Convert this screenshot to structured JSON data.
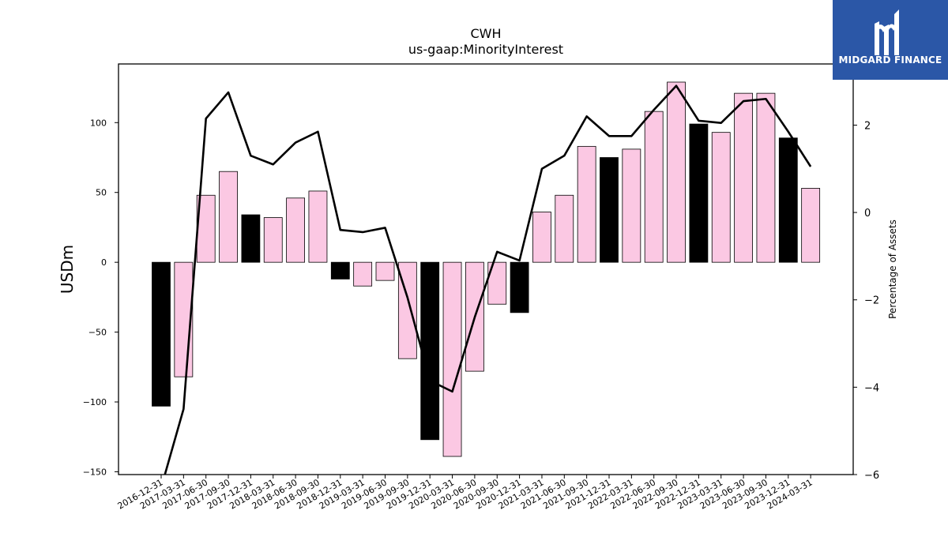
{
  "logo": {
    "text": "MIDGARD FINANCE",
    "icon": "midgard-logo-icon",
    "color": "#2b57a7"
  },
  "chart_data": {
    "type": "bar",
    "title": "CWH",
    "subtitle": "us-gaap:MinorityInterest",
    "ylabel": "USDm",
    "y2label": "Percentage of Assets",
    "ylim": [
      -152,
      142
    ],
    "y2lim": [
      -6,
      3.4
    ],
    "yticks": [
      -150,
      -100,
      -50,
      0,
      50,
      100
    ],
    "y2ticks": [
      -6,
      -4,
      -2,
      0,
      2
    ],
    "grid": false,
    "colors": {
      "q4_bar": "#000000",
      "other_bar": "#fbc8e3",
      "line": "#000000"
    },
    "categories": [
      "2016-12-31",
      "2017-03-31",
      "2017-06-30",
      "2017-09-30",
      "2017-12-31",
      "2018-03-31",
      "2018-06-30",
      "2018-09-30",
      "2018-12-31",
      "2019-03-31",
      "2019-06-30",
      "2019-09-30",
      "2019-12-31",
      "2020-03-31",
      "2020-06-30",
      "2020-09-30",
      "2020-12-31",
      "2021-03-31",
      "2021-06-30",
      "2021-09-30",
      "2021-12-31",
      "2022-03-31",
      "2022-06-30",
      "2022-09-30",
      "2022-12-31",
      "2023-03-31",
      "2023-06-30",
      "2023-09-30",
      "2023-12-31",
      "2024-03-31"
    ],
    "values": [
      -103,
      -82,
      48,
      65,
      34,
      32,
      46,
      51,
      -12,
      -17,
      -13,
      -69,
      -127,
      -139,
      -78,
      -30,
      -36,
      36,
      48,
      83,
      75,
      81,
      108,
      129,
      99,
      93,
      121,
      121,
      89,
      53
    ],
    "series": [
      {
        "axis": "right",
        "values": [
          -6.3,
          -4.5,
          2.15,
          2.75,
          1.3,
          1.1,
          1.6,
          1.85,
          -0.4,
          -0.45,
          -0.35,
          -1.95,
          -3.85,
          -4.1,
          -2.4,
          -0.9,
          -1.1,
          1.0,
          1.3,
          2.2,
          1.75,
          1.75,
          2.35,
          2.9,
          2.1,
          2.05,
          2.55,
          2.6,
          1.85,
          1.05
        ]
      }
    ]
  }
}
